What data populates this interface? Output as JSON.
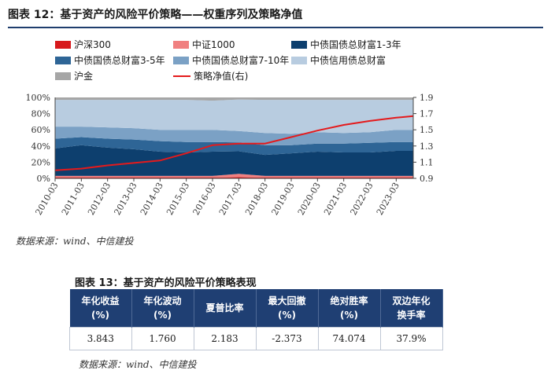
{
  "figure": {
    "title": "图表 12：基于资产的风险平价策略——权重序列及策略净值",
    "source": "数据来源：wind、中信建投"
  },
  "chart_data": {
    "type": "area",
    "stacking": "percent",
    "title": "基于资产的风险平价策略——权重序列及策略净值",
    "ylim": [
      0,
      100
    ],
    "y2lim": [
      0.9,
      1.9
    ],
    "yticks": [
      "0%",
      "20%",
      "40%",
      "60%",
      "80%",
      "100%"
    ],
    "y2ticks": [
      "0.9",
      "1.1",
      "1.3",
      "1.5",
      "1.7",
      "1.9"
    ],
    "x_tick_labels": [
      "2010-03",
      "2011-03",
      "2012-03",
      "2013-03",
      "2014-03",
      "2015-03",
      "2016-03",
      "2017-03",
      "2018-03",
      "2019-03",
      "2020-03",
      "2021-03",
      "2022-03",
      "2023-03"
    ],
    "x": [
      2010.25,
      2011.25,
      2012.25,
      2013.25,
      2014.25,
      2015.25,
      2016.25,
      2017.25,
      2018.25,
      2019.25,
      2020.25,
      2021.25,
      2022.25,
      2023.25,
      2023.9
    ],
    "series": [
      {
        "name": "沪深300",
        "color": "#d7191c",
        "values": [
          1,
          1,
          1,
          1,
          1,
          1,
          1,
          1.5,
          1,
          1,
          1,
          1,
          1,
          1,
          1
        ]
      },
      {
        "name": "中证1000",
        "color": "#f08080",
        "values": [
          2,
          2,
          2,
          2,
          2,
          2,
          2,
          4,
          2,
          2,
          2,
          2,
          2,
          2,
          2
        ]
      },
      {
        "name": "中债国债总财富1-3年",
        "color": "#0d3f6e",
        "values": [
          34,
          38,
          35,
          33,
          30,
          29,
          30,
          28,
          26,
          28,
          30,
          29,
          29,
          31,
          31
        ]
      },
      {
        "name": "中债国债总财富3-5年",
        "color": "#2e6596",
        "values": [
          12,
          10,
          11,
          12,
          13,
          13,
          12,
          11,
          12,
          10,
          10,
          11,
          12,
          11,
          11
        ]
      },
      {
        "name": "中债国债总财富7-10年",
        "color": "#7ba1c5",
        "values": [
          15,
          13,
          14,
          14,
          14,
          15,
          15,
          14,
          15,
          14,
          14,
          13,
          13,
          15,
          15
        ]
      },
      {
        "name": "中债信用债总财富",
        "color": "#b8cce0",
        "values": [
          33,
          33,
          34,
          35,
          37,
          37,
          36,
          39,
          41,
          42,
          40,
          41,
          40,
          37,
          37
        ]
      },
      {
        "name": "沪金",
        "color": "#a6a6a6",
        "values": [
          3,
          3,
          3,
          3,
          3,
          3,
          4,
          2.5,
          3,
          3,
          3,
          3,
          3,
          3,
          3
        ]
      }
    ],
    "line": {
      "name": "策略净值(右)",
      "color": "#e41a1c",
      "axis": "right",
      "values": [
        1.0,
        1.02,
        1.06,
        1.09,
        1.12,
        1.21,
        1.31,
        1.33,
        1.33,
        1.41,
        1.49,
        1.56,
        1.61,
        1.65,
        1.67
      ]
    }
  },
  "legend": [
    {
      "label": "沪深300",
      "color": "#d7191c",
      "kind": "box"
    },
    {
      "label": "中证1000",
      "color": "#f08080",
      "kind": "box"
    },
    {
      "label": "中债国债总财富1-3年",
      "color": "#0d3f6e",
      "kind": "box"
    },
    {
      "label": "中债国债总财富3-5年",
      "color": "#2e6596",
      "kind": "box"
    },
    {
      "label": "中债国债总财富7-10年",
      "color": "#7ba1c5",
      "kind": "box"
    },
    {
      "label": "中债信用债总财富",
      "color": "#b8cce0",
      "kind": "box"
    },
    {
      "label": "沪金",
      "color": "#a6a6a6",
      "kind": "box"
    },
    {
      "label": "策略净值(右)",
      "color": "#e41a1c",
      "kind": "line"
    }
  ],
  "table": {
    "title": "图表 13：基于资产的风险平价策略表现",
    "headers": [
      {
        "line1": "年化收益",
        "line2": "(%)"
      },
      {
        "line1": "年化波动",
        "line2": "(%)"
      },
      {
        "line1": "夏普比率",
        "line2": ""
      },
      {
        "line1": "最大回撤",
        "line2": "(%)"
      },
      {
        "line1": "绝对胜率",
        "line2": "(%)"
      },
      {
        "line1": "双边年化",
        "line2": "换手率"
      }
    ],
    "values": [
      "3.843",
      "1.760",
      "2.183",
      "-2.373",
      "74.074",
      "37.9%"
    ],
    "source": "数据来源：wind、中信建投"
  }
}
